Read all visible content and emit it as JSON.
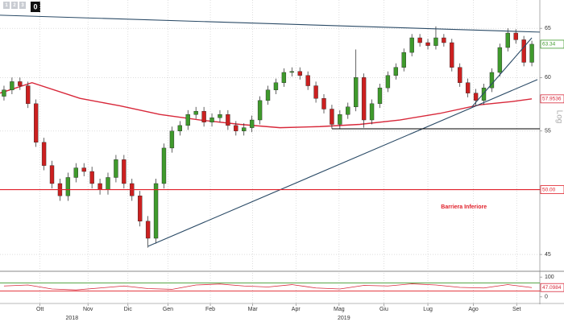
{
  "chart_data": {
    "type": "candlestick",
    "log_scale": true,
    "grid": true,
    "up_color": "#3f9a2c",
    "down_color": "#cc2020",
    "xlim": [
      -0.5,
      67
    ],
    "ylim": [
      43.9,
      67
    ],
    "yticks": [
      45,
      50,
      55,
      60,
      65
    ],
    "xticks": [
      {
        "value": 4.5,
        "label": "Ott"
      },
      {
        "value": 10.5,
        "label": "Nov"
      },
      {
        "value": 15.5,
        "label": "Dic"
      },
      {
        "value": 20.5,
        "label": "Gen"
      },
      {
        "value": 25.8,
        "label": "Feb"
      },
      {
        "value": 31.1,
        "label": "Mar"
      },
      {
        "value": 36.5,
        "label": "Apr"
      },
      {
        "value": 41.9,
        "label": "Mag"
      },
      {
        "value": 47.5,
        "label": "Giu"
      },
      {
        "value": 53,
        "label": "Lug"
      },
      {
        "value": 58.7,
        "label": "Ago"
      },
      {
        "value": 64.1,
        "label": "Set"
      }
    ],
    "years": [
      {
        "value": 8.5,
        "label": "2018"
      },
      {
        "value": 42.5,
        "label": "2019"
      }
    ],
    "axis_label": "Log",
    "toolbar": [
      "1",
      "2",
      "3",
      "0"
    ],
    "open": [
      58.2,
      58.8,
      59.6,
      59.2,
      57.5,
      54,
      52,
      50.5,
      49.5,
      51,
      51.8,
      51.5,
      50.5,
      50,
      51,
      52.5,
      50.5,
      49.5,
      47.5,
      46.2,
      50.5,
      53.5,
      55,
      55.5,
      56.5,
      56.8,
      55.8,
      56.2,
      56.5,
      55.5,
      55,
      55.3,
      56,
      57.8,
      58.8,
      59.5,
      60.5,
      60.6,
      60.2,
      59.2,
      58,
      57,
      55.6,
      56.5,
      57.2,
      60,
      56,
      57.5,
      59,
      60.2,
      61,
      62.5,
      64,
      63.5,
      63.2,
      64,
      63.5,
      61,
      59.5,
      58.5,
      57.8,
      59,
      60.5,
      63,
      64.5,
      63.8,
      61.5
    ],
    "high": [
      59.2,
      60,
      60,
      59.6,
      57.9,
      54.4,
      52.4,
      50.9,
      51.4,
      52.2,
      52.2,
      51.9,
      50.9,
      51.4,
      52.9,
      52.9,
      50.9,
      49.9,
      47.9,
      50.9,
      53.9,
      55.4,
      55.9,
      56.9,
      57.2,
      57.2,
      56.6,
      56.9,
      56.9,
      55.9,
      55.7,
      56.4,
      58.2,
      59.2,
      59.9,
      60.9,
      61,
      61,
      60.6,
      59.6,
      58.4,
      57.4,
      56.9,
      57.6,
      62.8,
      60.4,
      57.9,
      59.4,
      60.6,
      61.4,
      62.9,
      64.4,
      64.4,
      63.9,
      65.2,
      64.4,
      63.9,
      61.4,
      59.9,
      58.9,
      59.4,
      60.9,
      63.4,
      65,
      64.9,
      64.2,
      63.7
    ],
    "low": [
      57.8,
      58.4,
      58.8,
      57.1,
      53.6,
      51.6,
      50.1,
      49.1,
      49.1,
      50.6,
      51.1,
      50.1,
      49.6,
      49.6,
      50.6,
      50.1,
      49.1,
      47.1,
      45.5,
      45.8,
      50.1,
      53.1,
      54.6,
      55.1,
      56.1,
      55.4,
      55.4,
      55.8,
      55.1,
      54.6,
      54.6,
      54.9,
      55.6,
      57.4,
      58.4,
      59.1,
      60.1,
      59.8,
      58.8,
      57.6,
      56.6,
      55.2,
      55.2,
      56.1,
      56.8,
      55.3,
      55.6,
      57.1,
      58.6,
      59.8,
      60.6,
      62.1,
      63.1,
      62.8,
      62.8,
      63.1,
      60.6,
      59.1,
      58.1,
      57.3,
      57.4,
      58.6,
      60.1,
      62.6,
      63.4,
      61.1,
      61.1
    ],
    "close": [
      58.8,
      59.6,
      59.2,
      57.5,
      54,
      52,
      50.5,
      49.5,
      51,
      51.8,
      51.5,
      50.5,
      50,
      51,
      52.5,
      50.5,
      49.5,
      47.5,
      46.2,
      50.5,
      53.5,
      55,
      55.5,
      56.5,
      56.8,
      55.8,
      56.2,
      56.5,
      55.5,
      55,
      55.3,
      56,
      57.8,
      58.8,
      59.5,
      60.5,
      60.6,
      60.2,
      59.2,
      58,
      57,
      55.6,
      56.5,
      57.2,
      60,
      56,
      57.5,
      59,
      60.2,
      61,
      62.5,
      64,
      63.5,
      63.2,
      64,
      63.5,
      61,
      59.5,
      58.5,
      57.8,
      59,
      60.5,
      63,
      64.5,
      63.8,
      61.5,
      63.34
    ],
    "moving_average": {
      "color": "#d8283a",
      "x": [
        -0.5,
        3.5,
        9.5,
        14.5,
        19.5,
        24.5,
        29.5,
        34.5,
        39.5,
        44.5,
        49.5,
        54.5,
        59.5,
        63.5,
        66
      ],
      "values": [
        58.5,
        59.5,
        58,
        57.3,
        56.5,
        56,
        55.6,
        55.3,
        55.4,
        55.6,
        56,
        56.6,
        57.4,
        57.7,
        57.9536
      ]
    },
    "lines": [
      {
        "color": "#2a4a66",
        "x": [
          -0.5,
          67
        ],
        "values": [
          66.4,
          64.6
        ]
      },
      {
        "color": "#2a4a66",
        "x": [
          18,
          66.7
        ],
        "values": [
          45.6,
          59.8
        ]
      },
      {
        "color": "#2a4a66",
        "x": [
          58.5,
          66
        ],
        "values": [
          57.2,
          64
        ]
      },
      {
        "color": "#000000",
        "x": [
          41,
          67
        ],
        "values": [
          55.2,
          55.2
        ]
      },
      {
        "color": "#e0202a",
        "x": [
          -0.5,
          67
        ],
        "values": [
          50,
          50
        ]
      }
    ],
    "price_labels": [
      {
        "value": 63.34,
        "label": "63.34",
        "color": "#3f9a2c"
      },
      {
        "value": 57.9536,
        "label": "57.9536",
        "color": "#d8283a"
      },
      {
        "value": 50,
        "label": "50.00",
        "color": "#e0202a"
      }
    ],
    "annotation": {
      "x": 57.5,
      "value": 48.6,
      "label": "Barriera Inferiore"
    },
    "rsi": {
      "color": "#d8283a",
      "ylim": [
        -25,
        125
      ],
      "yticks": [
        0,
        100
      ],
      "levels": [
        {
          "value": 70,
          "color": "#3f9a2c"
        },
        {
          "value": 30,
          "color": "#e0202a"
        }
      ],
      "x": [
        0,
        3,
        6,
        9,
        12,
        15,
        18,
        21,
        24,
        27,
        30,
        33,
        36,
        39,
        42,
        45,
        48,
        51,
        54,
        57,
        60,
        63,
        66
      ],
      "values": [
        55,
        60,
        40,
        35,
        45,
        55,
        42,
        38,
        60,
        65,
        55,
        50,
        62,
        45,
        40,
        58,
        55,
        66,
        60,
        48,
        45,
        62,
        47.0984
      ],
      "last_label": {
        "value": 47.0984,
        "label": "47.0984"
      }
    }
  }
}
